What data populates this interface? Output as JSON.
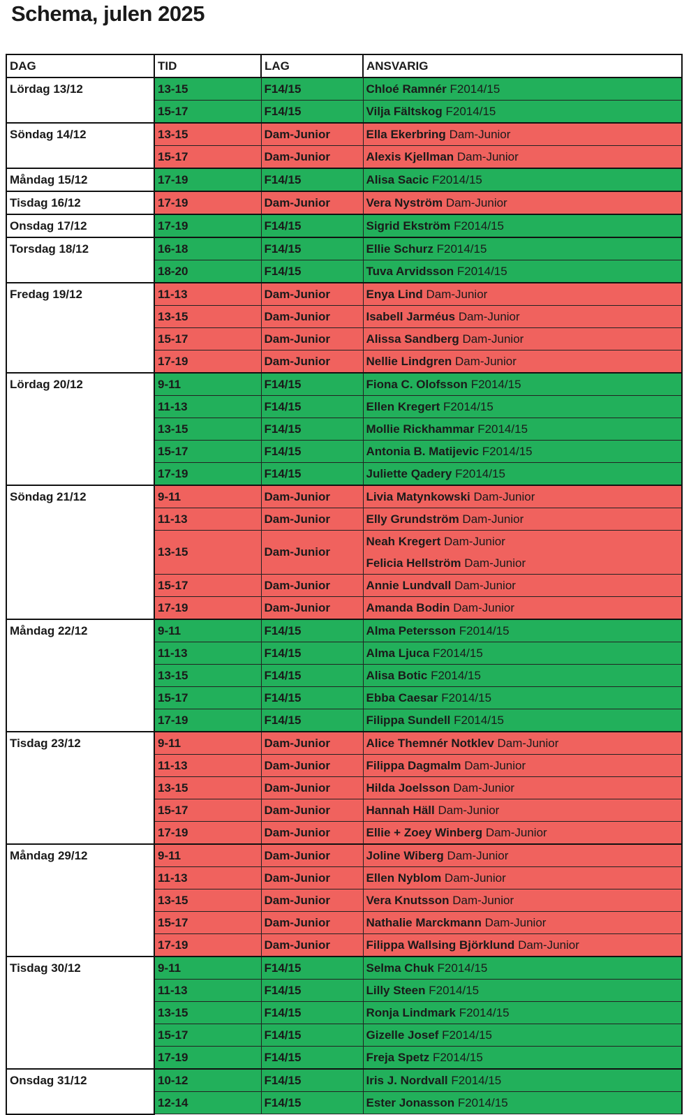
{
  "title": "Schema, julen 2025",
  "header": [
    "DAG",
    "TID",
    "LAG",
    "ANSVARIG"
  ],
  "days": [
    {
      "day": "Lördag 13/12",
      "color": "#22b05b",
      "slots": [
        {
          "time": "13-15",
          "team": "F14/15",
          "people": [
            {
              "name": "Chloé Ramnér",
              "team": "F2014/15"
            }
          ]
        },
        {
          "time": "15-17",
          "team": "F14/15",
          "people": [
            {
              "name": "Vilja Fältskog",
              "team": "F2014/15"
            }
          ]
        }
      ]
    },
    {
      "day": "Söndag 14/12",
      "color": "#f0625e",
      "slots": [
        {
          "time": "13-15",
          "team": "Dam-Junior",
          "people": [
            {
              "name": "Ella Ekerbring",
              "team": "Dam-Junior"
            }
          ]
        },
        {
          "time": "15-17",
          "team": "Dam-Junior",
          "people": [
            {
              "name": "Alexis Kjellman",
              "team": "Dam-Junior"
            }
          ]
        }
      ]
    },
    {
      "day": "Måndag 15/12",
      "color": "#22b05b",
      "slots": [
        {
          "time": "17-19",
          "team": "F14/15",
          "people": [
            {
              "name": "Alisa Sacic",
              "team": "F2014/15"
            }
          ]
        }
      ]
    },
    {
      "day": "Tisdag 16/12",
      "color": "#f0625e",
      "slots": [
        {
          "time": "17-19",
          "team": "Dam-Junior",
          "people": [
            {
              "name": "Vera Nyström",
              "team": "Dam-Junior"
            }
          ]
        }
      ]
    },
    {
      "day": "Onsdag 17/12",
      "color": "#22b05b",
      "slots": [
        {
          "time": "17-19",
          "team": "F14/15",
          "people": [
            {
              "name": "Sigrid Ekström",
              "team": "F2014/15"
            }
          ]
        }
      ]
    },
    {
      "day": "Torsdag 18/12",
      "color": "#22b05b",
      "slots": [
        {
          "time": "16-18",
          "team": "F14/15",
          "people": [
            {
              "name": "Ellie Schurz",
              "team": "F2014/15"
            }
          ]
        },
        {
          "time": "18-20",
          "team": "F14/15",
          "people": [
            {
              "name": "Tuva Arvidsson",
              "team": "F2014/15"
            }
          ]
        }
      ]
    },
    {
      "day": "Fredag 19/12",
      "color": "#f0625e",
      "slots": [
        {
          "time": "11-13",
          "team": "Dam-Junior",
          "people": [
            {
              "name": "Enya Lind",
              "team": "Dam-Junior"
            }
          ]
        },
        {
          "time": "13-15",
          "team": "Dam-Junior",
          "people": [
            {
              "name": "Isabell Jarméus",
              "team": "Dam-Junior"
            }
          ]
        },
        {
          "time": "15-17",
          "team": "Dam-Junior",
          "people": [
            {
              "name": "Alissa Sandberg",
              "team": "Dam-Junior"
            }
          ]
        },
        {
          "time": "17-19",
          "team": "Dam-Junior",
          "people": [
            {
              "name": "Nellie Lindgren",
              "team": "Dam-Junior"
            }
          ]
        }
      ]
    },
    {
      "day": "Lördag 20/12",
      "color": "#22b05b",
      "slots": [
        {
          "time": "9-11",
          "team": "F14/15",
          "people": [
            {
              "name": "Fiona C. Olofsson",
              "team": "F2014/15"
            }
          ]
        },
        {
          "time": "11-13",
          "team": "F14/15",
          "people": [
            {
              "name": "Ellen Kregert",
              "team": "F2014/15"
            }
          ]
        },
        {
          "time": "13-15",
          "team": "F14/15",
          "people": [
            {
              "name": "Mollie Rickhammar",
              "team": "F2014/15"
            }
          ]
        },
        {
          "time": "15-17",
          "team": "F14/15",
          "people": [
            {
              "name": "Antonia B. Matijevic",
              "team": "F2014/15"
            }
          ]
        },
        {
          "time": "17-19",
          "team": "F14/15",
          "people": [
            {
              "name": "Juliette Qadery",
              "team": "F2014/15"
            }
          ]
        }
      ]
    },
    {
      "day": "Söndag 21/12",
      "color": "#f0625e",
      "slots": [
        {
          "time": "9-11",
          "team": "Dam-Junior",
          "people": [
            {
              "name": "Livia Matynkowski",
              "team": "Dam-Junior"
            }
          ]
        },
        {
          "time": "11-13",
          "team": "Dam-Junior",
          "people": [
            {
              "name": "Elly Grundström",
              "team": "Dam-Junior"
            }
          ]
        },
        {
          "time": "13-15",
          "team": "Dam-Junior",
          "people": [
            {
              "name": "Neah Kregert",
              "team": "Dam-Junior"
            },
            {
              "name": "Felicia Hellström",
              "team": "Dam-Junior"
            }
          ]
        },
        {
          "time": "15-17",
          "team": "Dam-Junior",
          "people": [
            {
              "name": "Annie Lundvall",
              "team": "Dam-Junior"
            }
          ]
        },
        {
          "time": "17-19",
          "team": "Dam-Junior",
          "people": [
            {
              "name": "Amanda Bodin",
              "team": "Dam-Junior"
            }
          ]
        }
      ]
    },
    {
      "day": "Måndag 22/12",
      "color": "#22b05b",
      "slots": [
        {
          "time": "9-11",
          "team": "F14/15",
          "people": [
            {
              "name": "Alma Petersson",
              "team": "F2014/15"
            }
          ]
        },
        {
          "time": "11-13",
          "team": "F14/15",
          "people": [
            {
              "name": "Alma Ljuca",
              "team": "F2014/15"
            }
          ]
        },
        {
          "time": "13-15",
          "team": "F14/15",
          "people": [
            {
              "name": "Alisa Botic",
              "team": "F2014/15"
            }
          ]
        },
        {
          "time": "15-17",
          "team": "F14/15",
          "people": [
            {
              "name": "Ebba Caesar",
              "team": "F2014/15"
            }
          ]
        },
        {
          "time": "17-19",
          "team": "F14/15",
          "people": [
            {
              "name": "Filippa Sundell",
              "team": "F2014/15"
            }
          ]
        }
      ]
    },
    {
      "day": "Tisdag 23/12",
      "color": "#f0625e",
      "slots": [
        {
          "time": "9-11",
          "team": "Dam-Junior",
          "people": [
            {
              "name": "Alice Themnér Notklev",
              "team": "Dam-Junior"
            }
          ]
        },
        {
          "time": "11-13",
          "team": "Dam-Junior",
          "people": [
            {
              "name": "Filippa Dagmalm",
              "team": "Dam-Junior"
            }
          ]
        },
        {
          "time": "13-15",
          "team": "Dam-Junior",
          "people": [
            {
              "name": "Hilda Joelsson",
              "team": "Dam-Junior"
            }
          ]
        },
        {
          "time": "15-17",
          "team": "Dam-Junior",
          "people": [
            {
              "name": "Hannah Häll",
              "team": "Dam-Junior"
            }
          ]
        },
        {
          "time": "17-19",
          "team": "Dam-Junior",
          "people": [
            {
              "name": "Ellie + Zoey Winberg",
              "team": "Dam-Junior"
            }
          ]
        }
      ]
    },
    {
      "day": "Måndag 29/12",
      "color": "#f0625e",
      "slots": [
        {
          "time": "9-11",
          "team": "Dam-Junior",
          "people": [
            {
              "name": "Joline Wiberg",
              "team": "Dam-Junior"
            }
          ]
        },
        {
          "time": "11-13",
          "team": "Dam-Junior",
          "people": [
            {
              "name": "Ellen Nyblom",
              "team": "Dam-Junior"
            }
          ]
        },
        {
          "time": "13-15",
          "team": "Dam-Junior",
          "people": [
            {
              "name": "Vera Knutsson",
              "team": "Dam-Junior"
            }
          ]
        },
        {
          "time": "15-17",
          "team": "Dam-Junior",
          "people": [
            {
              "name": "Nathalie Marckmann",
              "team": "Dam-Junior"
            }
          ]
        },
        {
          "time": "17-19",
          "team": "Dam-Junior",
          "people": [
            {
              "name": "Filippa Wallsing Björklund",
              "team": "Dam-Junior"
            }
          ]
        }
      ]
    },
    {
      "day": "Tisdag 30/12",
      "color": "#22b05b",
      "slots": [
        {
          "time": "9-11",
          "team": "F14/15",
          "people": [
            {
              "name": "Selma Chuk",
              "team": "F2014/15"
            }
          ]
        },
        {
          "time": "11-13",
          "team": "F14/15",
          "people": [
            {
              "name": "Lilly Steen",
              "team": "F2014/15"
            }
          ]
        },
        {
          "time": "13-15",
          "team": "F14/15",
          "people": [
            {
              "name": "Ronja Lindmark",
              "team": "F2014/15"
            }
          ]
        },
        {
          "time": "15-17",
          "team": "F14/15",
          "people": [
            {
              "name": "Gizelle Josef",
              "team": "F2014/15"
            }
          ]
        },
        {
          "time": "17-19",
          "team": "F14/15",
          "people": [
            {
              "name": "Freja Spetz",
              "team": "F2014/15"
            }
          ]
        }
      ]
    },
    {
      "day": "Onsdag 31/12",
      "color": "#22b05b",
      "slots": [
        {
          "time": "10-12",
          "team": "F14/15",
          "people": [
            {
              "name": "Iris J. Nordvall",
              "team": "F2014/15"
            }
          ]
        },
        {
          "time": "12-14",
          "team": "F14/15",
          "people": [
            {
              "name": "Ester Jonasson",
              "team": "F2014/15"
            }
          ]
        }
      ]
    }
  ]
}
